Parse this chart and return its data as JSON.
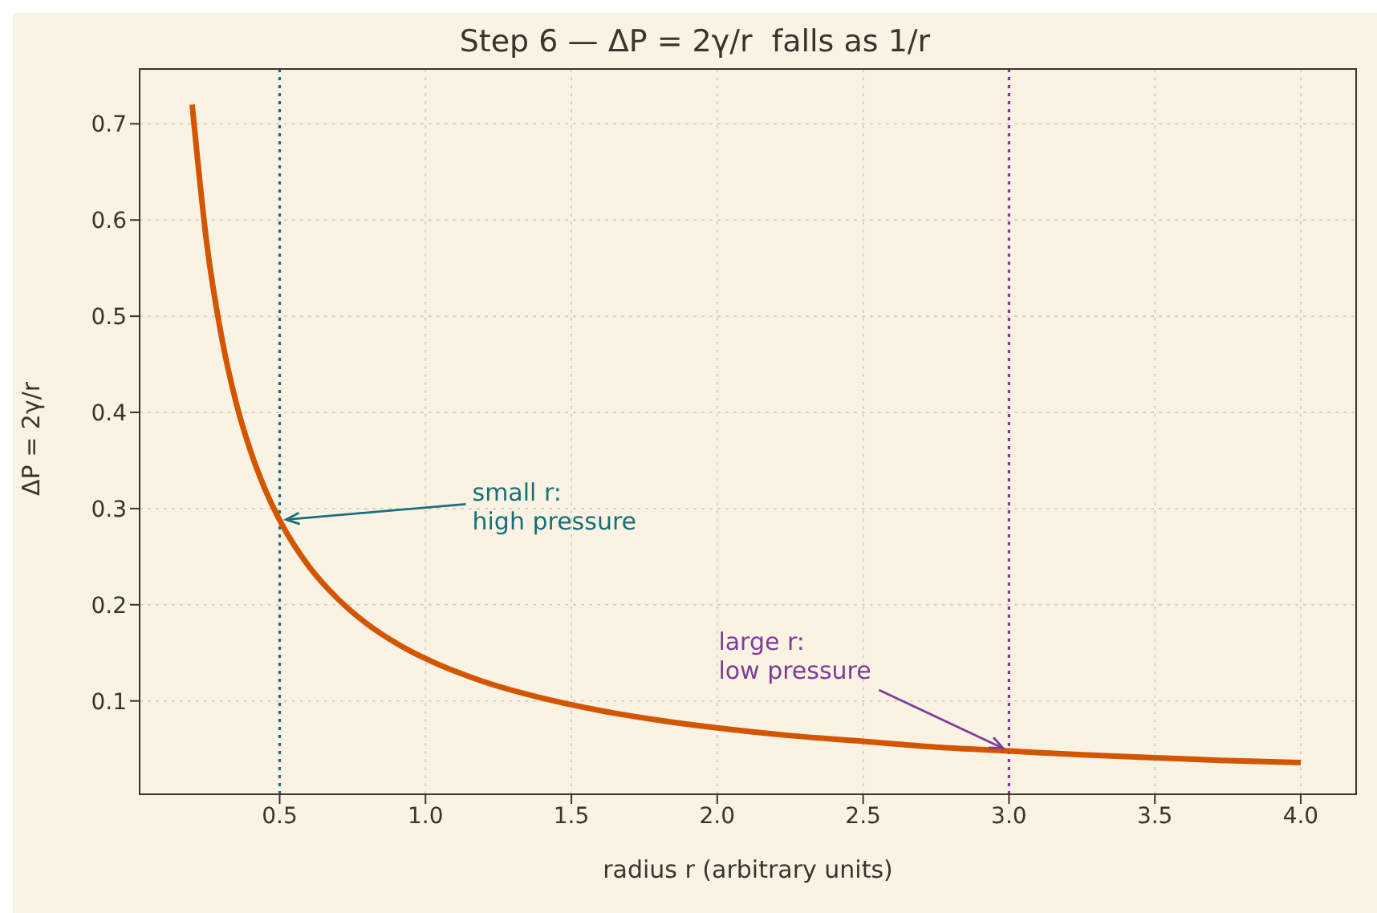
{
  "chart_data": {
    "type": "line",
    "title": "Step 6 — ΔP = 2γ/r  falls as 1/r",
    "xlabel": "radius r  (arbitrary units)",
    "ylabel": "ΔP = 2γ/r",
    "x": [
      0.2,
      0.25,
      0.3,
      0.35,
      0.4,
      0.45,
      0.5,
      0.6,
      0.7,
      0.8,
      0.9,
      1.0,
      1.2,
      1.4,
      1.6,
      1.8,
      2.0,
      2.25,
      2.5,
      2.75,
      3.0,
      3.25,
      3.5,
      3.75,
      4.0
    ],
    "series": [
      {
        "color": "#d45500",
        "values": [
          0.72,
          0.576,
          0.48,
          0.411,
          0.36,
          0.32,
          0.288,
          0.24,
          0.206,
          0.18,
          0.16,
          0.144,
          0.12,
          0.103,
          0.09,
          0.08,
          0.072,
          0.064,
          0.058,
          0.052,
          0.048,
          0.044,
          0.041,
          0.038,
          0.036
        ]
      }
    ],
    "xlim": [
      0.02,
      4.19
    ],
    "ylim": [
      0.003,
      0.757
    ],
    "xticks": [
      0.5,
      {
        "value": 1,
        "label": "1.0"
      },
      1.5,
      {
        "value": 2,
        "label": "2.0"
      },
      2.5,
      {
        "value": 3,
        "label": "3.0"
      },
      3.5,
      {
        "value": 4,
        "label": "4.0"
      }
    ],
    "yticks": [
      0.1,
      0.2,
      0.3,
      0.4,
      0.5,
      0.6,
      0.7
    ],
    "grid": true,
    "line_style": "solid",
    "ref_lines": [
      {
        "axis": "x",
        "value": 0.5,
        "color": "#17707a",
        "line_style": "dotted"
      },
      {
        "axis": "x",
        "value": 3,
        "color": "#7d3c98",
        "line_style": "dotted"
      }
    ],
    "annotations": [
      {
        "text": "small r:\nhigh pressure",
        "x": 0.5,
        "y": 0.288
      },
      {
        "text": "large r:\nlow pressure",
        "x": 3,
        "y": 0.048
      }
    ]
  }
}
